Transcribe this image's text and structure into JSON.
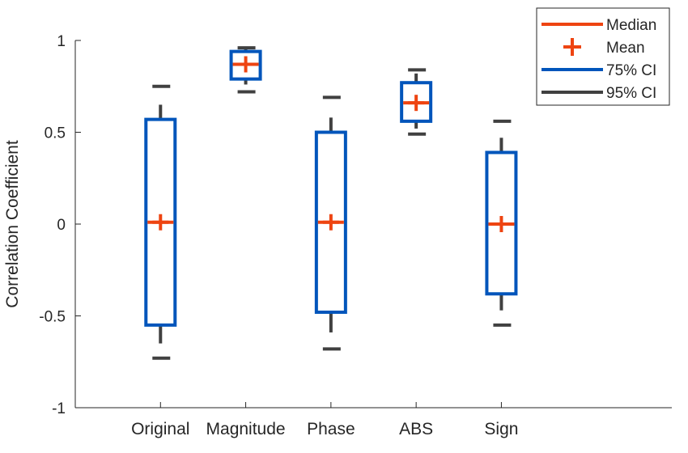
{
  "chart_data": {
    "type": "box",
    "ylabel": "Correlation Coefficient",
    "ylim": [
      -1,
      1
    ],
    "yticks": [
      -1,
      -0.5,
      0,
      0.5,
      1
    ],
    "ytick_labels": [
      "-1",
      "-0.5",
      "0",
      "0.5",
      "1"
    ],
    "categories": [
      "Original",
      "Magnitude",
      "Phase",
      "ABS",
      "Sign"
    ],
    "boxes": [
      {
        "category": "Original",
        "ci95_low": -0.73,
        "ci95_high": 0.75,
        "ci75_low": -0.55,
        "ci75_high": 0.57,
        "median": 0.01,
        "mean": 0.01,
        "whisker_low": -0.65,
        "whisker_high": 0.65
      },
      {
        "category": "Magnitude",
        "ci95_low": 0.72,
        "ci95_high": 0.96,
        "ci75_low": 0.79,
        "ci75_high": 0.94,
        "median": 0.87,
        "mean": 0.87,
        "whisker_low": 0.76,
        "whisker_high": 0.96
      },
      {
        "category": "Phase",
        "ci95_low": -0.68,
        "ci95_high": 0.69,
        "ci75_low": -0.48,
        "ci75_high": 0.5,
        "median": 0.01,
        "mean": 0.01,
        "whisker_low": -0.59,
        "whisker_high": 0.58
      },
      {
        "category": "ABS",
        "ci95_low": 0.49,
        "ci95_high": 0.84,
        "ci75_low": 0.56,
        "ci75_high": 0.77,
        "median": 0.66,
        "mean": 0.66,
        "whisker_low": 0.52,
        "whisker_high": 0.82
      },
      {
        "category": "Sign",
        "ci95_low": -0.55,
        "ci95_high": 0.56,
        "ci75_low": -0.38,
        "ci75_high": 0.39,
        "median": 0.0,
        "mean": 0.0,
        "whisker_low": -0.47,
        "whisker_high": 0.47
      }
    ],
    "legend": {
      "position": "top-right",
      "entries": [
        {
          "label": "Median",
          "symbol": "line",
          "color": "#ee4411"
        },
        {
          "label": "Mean",
          "symbol": "plus",
          "color": "#ee4411"
        },
        {
          "label": "75% CI",
          "symbol": "line",
          "color": "#0055bb"
        },
        {
          "label": "95% CI",
          "symbol": "line",
          "color": "#404040"
        }
      ]
    },
    "colors": {
      "median": "#ee4411",
      "mean": "#ee4411",
      "ci75": "#0055bb",
      "ci95": "#404040",
      "axis": "#262626"
    }
  }
}
